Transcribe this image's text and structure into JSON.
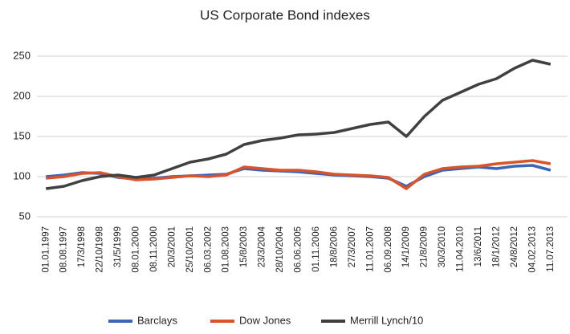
{
  "chart_data": {
    "type": "line",
    "title": "US Corporate Bond indexes",
    "categories": [
      "01.01.1997",
      "08.08.1997",
      "17/3/1998",
      "22/10/1998",
      "31/5/1999",
      "08.01.2000",
      "08.11.2000",
      "20/3/2001",
      "25/10/2001",
      "06.03.2002",
      "01.08.2003",
      "15/8/2003",
      "23/3/2004",
      "28/10/2004",
      "06.06.2005",
      "01.11.2006",
      "18/8/2006",
      "27/3/2007",
      "11.01.2007",
      "06.09.2008",
      "14/1/2009",
      "21/8/2009",
      "30/3/2010",
      "11.04.2010",
      "13/6/2011",
      "18/1/2012",
      "24/8/2012",
      "04.02.2013",
      "11.07.2013"
    ],
    "series": [
      {
        "name": "Barclays",
        "color": "#3a66b5",
        "values": [
          100,
          102,
          105,
          104,
          99,
          97,
          98,
          100,
          101,
          102,
          103,
          110,
          108,
          107,
          106,
          104,
          102,
          101,
          100,
          98,
          88,
          100,
          108,
          110,
          112,
          110,
          113,
          114,
          108
        ]
      },
      {
        "name": "Dow Jones",
        "color": "#d9532b",
        "values": [
          98,
          100,
          104,
          105,
          100,
          96,
          97,
          99,
          101,
          100,
          102,
          112,
          110,
          108,
          108,
          106,
          103,
          102,
          101,
          99,
          85,
          103,
          110,
          112,
          113,
          116,
          118,
          120,
          116
        ]
      },
      {
        "name": "Merrill Lynch/10",
        "color": "#404040",
        "values": [
          85,
          88,
          95,
          100,
          102,
          99,
          102,
          110,
          118,
          122,
          128,
          140,
          145,
          148,
          152,
          153,
          155,
          160,
          165,
          168,
          150,
          175,
          195,
          205,
          215,
          222,
          235,
          245,
          240
        ]
      }
    ],
    "ylim": [
      50,
      265
    ],
    "yticks": [
      50,
      100,
      150,
      200,
      250
    ],
    "grid": true,
    "legend": "bottom"
  }
}
